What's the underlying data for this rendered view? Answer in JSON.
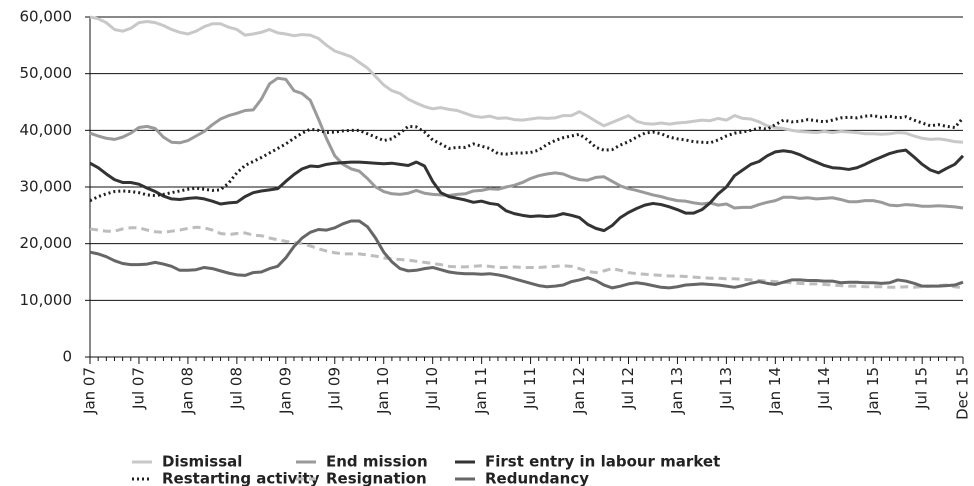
{
  "chart_data": {
    "type": "line",
    "categories": [
      "Jan 07",
      null,
      null,
      null,
      null,
      null,
      "Jul 07",
      null,
      null,
      null,
      null,
      null,
      "Jan 08",
      null,
      null,
      null,
      null,
      null,
      "Jul 08",
      null,
      null,
      null,
      null,
      null,
      "Jan 09",
      null,
      null,
      null,
      null,
      null,
      "Jul 09",
      null,
      null,
      null,
      null,
      null,
      "Jan 10",
      null,
      null,
      null,
      null,
      null,
      "Jul 10",
      null,
      null,
      null,
      null,
      null,
      "Jan 11",
      null,
      null,
      null,
      null,
      null,
      "Jul 11",
      null,
      null,
      null,
      null,
      null,
      "Jan 12",
      null,
      null,
      null,
      null,
      null,
      "Jul 12",
      null,
      null,
      null,
      null,
      null,
      "Jan 13",
      null,
      null,
      null,
      null,
      null,
      "Jul 13",
      null,
      null,
      null,
      null,
      null,
      "Jan 14",
      null,
      null,
      null,
      null,
      null,
      "Jul 14",
      null,
      null,
      null,
      null,
      null,
      "Jan 15",
      null,
      null,
      null,
      null,
      null,
      "Jul 15",
      null,
      null,
      null,
      null,
      "Dec 15"
    ],
    "ylim": [
      0,
      60000
    ],
    "yticks": [
      0,
      {
        "value": 10000,
        "label": "10,000"
      },
      {
        "value": 20000,
        "label": "20,000"
      },
      {
        "value": 30000,
        "label": "30,000"
      },
      {
        "value": 40000,
        "label": "40,000"
      },
      {
        "value": 50000,
        "label": "50,000"
      },
      {
        "value": 60000,
        "label": "60,000"
      }
    ],
    "grid": true,
    "legend": "bottom",
    "series": [
      {
        "name": "Dismissal",
        "color": "#c8c8c8",
        "dash": "solid",
        "values": [
          60000,
          59700,
          59000,
          57800,
          57500,
          58000,
          59000,
          59200,
          59000,
          58500,
          57800,
          57300,
          57000,
          57500,
          58300,
          58800,
          58800,
          58200,
          57800,
          56800,
          57000,
          57300,
          57800,
          57200,
          57000,
          56700,
          56900,
          56800,
          56200,
          55000,
          54000,
          53500,
          53000,
          52000,
          51000,
          49500,
          48000,
          47000,
          46500,
          45500,
          44800,
          44200,
          43800,
          44000,
          43700,
          43500,
          43000,
          42500,
          42300,
          42500,
          42100,
          42200,
          41900,
          41800,
          42000,
          42200,
          42100,
          42200,
          42600,
          42600,
          43300,
          42500,
          41600,
          40800,
          41400,
          42000,
          42600,
          41600,
          41200,
          41100,
          41300,
          41100,
          41300,
          41400,
          41600,
          41800,
          41700,
          42100,
          41800,
          42600,
          42100,
          42000,
          41500,
          40800,
          40500,
          40300,
          40000,
          39800,
          39700,
          39600,
          39800,
          39600,
          39800,
          39700,
          39600,
          39400,
          39400,
          39300,
          39400,
          39600,
          39500,
          39000,
          38600,
          38400,
          38500,
          38300,
          38000,
          37900
        ]
      },
      {
        "name": "End mission",
        "color": "#9a9a9a",
        "dash": "solid",
        "values": [
          39500,
          39000,
          38600,
          38400,
          38800,
          39500,
          40500,
          40700,
          40300,
          38800,
          37900,
          37800,
          38200,
          39000,
          39800,
          41000,
          42000,
          42600,
          43000,
          43500,
          43600,
          45500,
          48200,
          49200,
          49000,
          47000,
          46500,
          45300,
          42000,
          38500,
          35500,
          34000,
          33200,
          32800,
          31500,
          30000,
          29200,
          28800,
          28700,
          28900,
          29400,
          28900,
          28700,
          28600,
          28500,
          28700,
          28800,
          29300,
          29400,
          29700,
          29600,
          30000,
          30300,
          30800,
          31500,
          32000,
          32300,
          32500,
          32300,
          31700,
          31300,
          31200,
          31700,
          31800,
          31000,
          30200,
          29700,
          29400,
          29000,
          28600,
          28300,
          27900,
          27600,
          27500,
          27200,
          27000,
          27200,
          26800,
          27000,
          26300,
          26400,
          26400,
          26900,
          27300,
          27600,
          28200,
          28200,
          28000,
          28100,
          27900,
          28000,
          28100,
          27800,
          27400,
          27400,
          27600,
          27600,
          27300,
          26800,
          26700,
          26900,
          26800,
          26600,
          26600,
          26700,
          26600,
          26500,
          26300
        ]
      },
      {
        "name": "First entry in labour market",
        "color": "#333333",
        "dash": "solid",
        "values": [
          34200,
          33400,
          32300,
          31300,
          30800,
          30800,
          30500,
          29800,
          29200,
          28400,
          27900,
          27800,
          28000,
          28100,
          27900,
          27500,
          27000,
          27200,
          27300,
          28300,
          29000,
          29300,
          29500,
          29700,
          31000,
          32200,
          33200,
          33700,
          33600,
          34000,
          34200,
          34300,
          34400,
          34400,
          34300,
          34200,
          34100,
          34200,
          34000,
          33800,
          34400,
          33700,
          31000,
          29000,
          28300,
          28000,
          27700,
          27300,
          27500,
          27100,
          26900,
          25800,
          25300,
          25000,
          24800,
          24900,
          24800,
          24900,
          25300,
          25000,
          24600,
          23400,
          22700,
          22300,
          23200,
          24600,
          25500,
          26200,
          26800,
          27100,
          26900,
          26500,
          26000,
          25400,
          25400,
          26000,
          27200,
          28800,
          30000,
          32000,
          33000,
          34000,
          34500,
          35500,
          36200,
          36400,
          36200,
          35700,
          35000,
          34400,
          33800,
          33400,
          33300,
          33100,
          33400,
          34000,
          34700,
          35300,
          35900,
          36300,
          36500,
          35300,
          34000,
          33000,
          32500,
          33300,
          34000,
          35500
        ]
      },
      {
        "name": "Restarting activity",
        "color": "#1e1e1e",
        "dash": "dotted",
        "values": [
          27600,
          28300,
          28800,
          29200,
          29300,
          29200,
          29000,
          28600,
          28500,
          28700,
          29000,
          29300,
          29600,
          29800,
          29600,
          29400,
          29500,
          30700,
          32500,
          33800,
          34500,
          35200,
          36000,
          36800,
          37600,
          38600,
          39500,
          40200,
          40000,
          39600,
          39700,
          39900,
          40000,
          40000,
          39400,
          38800,
          38200,
          38500,
          39500,
          40700,
          40600,
          39700,
          38300,
          37600,
          36800,
          37000,
          37000,
          37600,
          37200,
          36800,
          35900,
          35800,
          36000,
          36000,
          36100,
          36500,
          37500,
          38200,
          38700,
          39000,
          39300,
          38300,
          37000,
          36500,
          36600,
          37400,
          38000,
          38800,
          39500,
          39700,
          39400,
          38800,
          38500,
          38300,
          38000,
          37900,
          37800,
          38300,
          39000,
          39500,
          39700,
          40000,
          40400,
          40200,
          41000,
          41800,
          41500,
          41600,
          41900,
          41700,
          41500,
          41800,
          42200,
          42300,
          42200,
          42500,
          42600,
          42300,
          42500,
          42200,
          42400,
          41800,
          41300,
          40800,
          41000,
          40700,
          40500,
          42200
        ]
      },
      {
        "name": "Resignation",
        "color": "#bdbdbd",
        "dash": "dashed",
        "values": [
          22600,
          22400,
          22200,
          22200,
          22600,
          22800,
          22800,
          22400,
          22100,
          22000,
          22200,
          22400,
          22700,
          22900,
          22800,
          22400,
          21800,
          21600,
          21800,
          21900,
          21500,
          21400,
          21000,
          20700,
          20400,
          20200,
          20000,
          19600,
          19100,
          18700,
          18400,
          18200,
          18200,
          18200,
          18000,
          17800,
          17500,
          17300,
          17200,
          17100,
          16900,
          16700,
          16500,
          16300,
          16000,
          15900,
          15900,
          16000,
          16100,
          16000,
          15800,
          15800,
          15900,
          15800,
          15800,
          15800,
          15900,
          16000,
          16100,
          16000,
          15600,
          15100,
          14900,
          15200,
          15600,
          15300,
          14900,
          14700,
          14600,
          14500,
          14400,
          14300,
          14300,
          14200,
          14100,
          14000,
          13900,
          13900,
          13800,
          13800,
          13700,
          13600,
          13500,
          13400,
          13300,
          13200,
          13100,
          13000,
          12900,
          12900,
          12800,
          12700,
          12600,
          12500,
          12500,
          12400,
          12400,
          12400,
          12300,
          12300,
          12400,
          12300,
          12400,
          12500,
          12600,
          12700,
          12400,
          12200
        ]
      },
      {
        "name": "Redundancy",
        "color": "#666666",
        "dash": "solid",
        "values": [
          18500,
          18200,
          17700,
          17000,
          16500,
          16300,
          16300,
          16400,
          16700,
          16400,
          16000,
          15300,
          15300,
          15400,
          15800,
          15600,
          15200,
          14800,
          14500,
          14400,
          14900,
          15000,
          15600,
          16000,
          17500,
          19500,
          21000,
          22000,
          22500,
          22400,
          22800,
          23500,
          24000,
          24000,
          23000,
          21000,
          18500,
          16800,
          15600,
          15200,
          15300,
          15600,
          15800,
          15400,
          15000,
          14800,
          14700,
          14700,
          14600,
          14700,
          14500,
          14200,
          13800,
          13400,
          13000,
          12600,
          12400,
          12500,
          12700,
          13300,
          13600,
          14000,
          13500,
          12700,
          12200,
          12500,
          12900,
          13100,
          12900,
          12600,
          12300,
          12200,
          12400,
          12700,
          12800,
          12900,
          12800,
          12700,
          12500,
          12300,
          12600,
          13000,
          13300,
          13000,
          12800,
          13200,
          13600,
          13600,
          13500,
          13500,
          13400,
          13400,
          13100,
          13200,
          13200,
          13100,
          13100,
          13000,
          13100,
          13600,
          13400,
          13000,
          12500,
          12500,
          12500,
          12600,
          12700,
          13200
        ]
      }
    ]
  }
}
